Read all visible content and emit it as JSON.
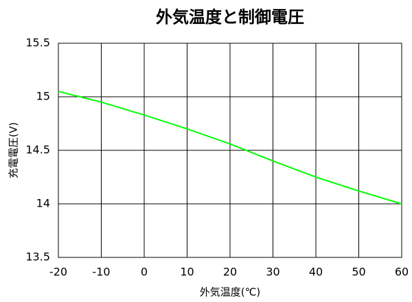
{
  "chart_data": {
    "type": "line",
    "title": "外気温度と制御電圧",
    "xlabel": "外気温度(℃)",
    "ylabel": "充電電圧(V)",
    "x": [
      -20,
      -10,
      0,
      10,
      20,
      30,
      40,
      50,
      60
    ],
    "series": [
      {
        "color": "#00ff00",
        "values": [
          15.05,
          14.95,
          14.83,
          14.7,
          14.56,
          14.4,
          14.25,
          14.12,
          14.0
        ]
      }
    ],
    "xlim": [
      -20,
      60
    ],
    "xticks": [
      -20,
      -10,
      0,
      10,
      20,
      30,
      40,
      50,
      60
    ],
    "ylim": [
      13.5,
      15.5
    ],
    "yticks": [
      13.5,
      14,
      14.5,
      15,
      15.5
    ],
    "grid": true
  }
}
